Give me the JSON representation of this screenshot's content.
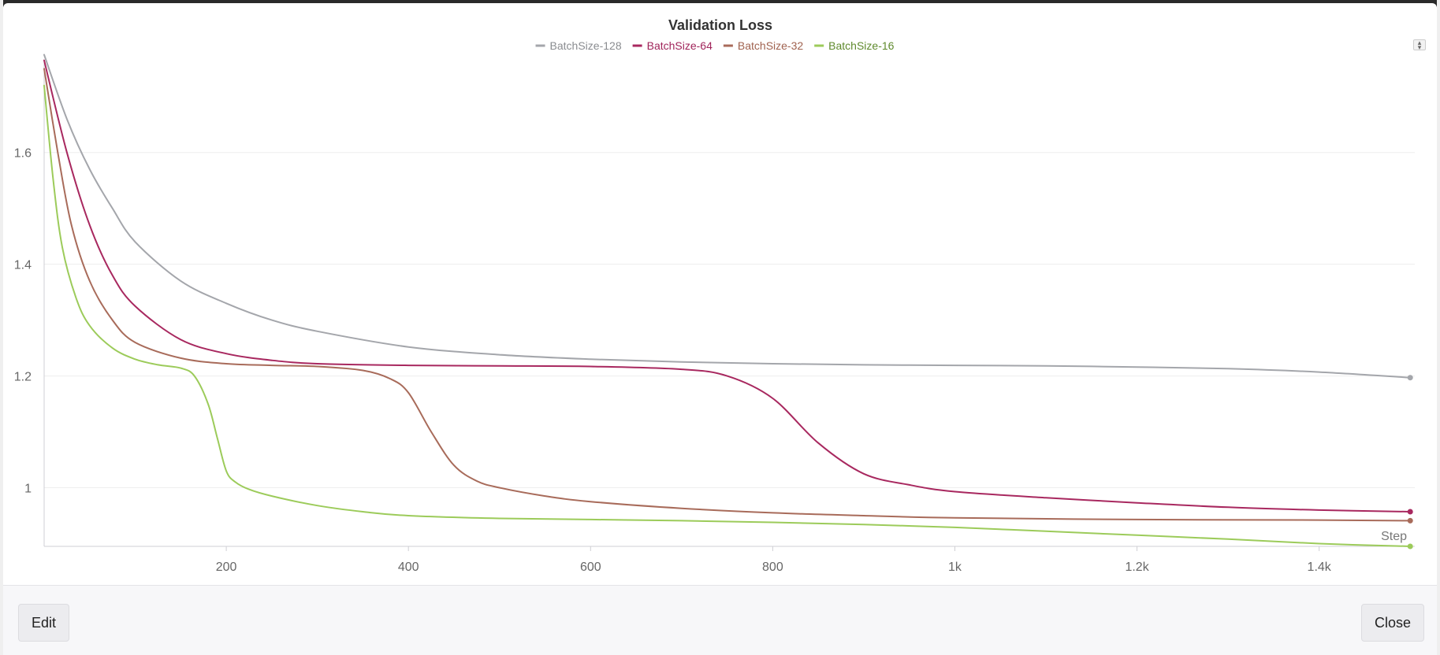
{
  "buttons": {
    "edit_label": "Edit",
    "close_label": "Close"
  },
  "colors": {
    "BatchSize-128": "#a4a6ab",
    "BatchSize-64": "#a8285f",
    "BatchSize-32": "#a86b5a",
    "BatchSize-16": "#9ccb5a"
  },
  "legend_text_colors": [
    "#8a8c90",
    "#a0245a",
    "#a0624f",
    "#5f8a2d"
  ],
  "chart_data": {
    "type": "line",
    "title": "Validation Loss",
    "xlabel": "Step",
    "ylabel": "",
    "xlim": [
      0,
      1505
    ],
    "ylim": [
      0.895,
      1.78
    ],
    "x_ticks": [
      {
        "value": 200,
        "label": "200"
      },
      {
        "value": 400,
        "label": "400"
      },
      {
        "value": 600,
        "label": "600"
      },
      {
        "value": 800,
        "label": "800"
      },
      {
        "value": 1000,
        "label": "1k"
      },
      {
        "value": 1200,
        "label": "1.2k"
      },
      {
        "value": 1400,
        "label": "1.4k"
      }
    ],
    "y_ticks": [
      {
        "value": 1.0,
        "label": "1"
      },
      {
        "value": 1.2,
        "label": "1.2"
      },
      {
        "value": 1.4,
        "label": "1.4"
      },
      {
        "value": 1.6,
        "label": "1.6"
      }
    ],
    "grid": true,
    "legend_position": "top-center",
    "series": [
      {
        "name": "BatchSize-128",
        "x": [
          0,
          25,
          50,
          75,
          100,
          150,
          200,
          250,
          300,
          400,
          500,
          600,
          700,
          800,
          900,
          1000,
          1100,
          1200,
          1300,
          1400,
          1500
        ],
        "y": [
          1.775,
          1.66,
          1.57,
          1.5,
          1.44,
          1.37,
          1.33,
          1.3,
          1.28,
          1.252,
          1.238,
          1.23,
          1.225,
          1.222,
          1.22,
          1.219,
          1.218,
          1.216,
          1.213,
          1.207,
          1.197
        ]
      },
      {
        "name": "BatchSize-64",
        "x": [
          0,
          25,
          50,
          75,
          100,
          150,
          200,
          250,
          300,
          400,
          500,
          600,
          700,
          750,
          800,
          850,
          900,
          950,
          1000,
          1100,
          1200,
          1300,
          1400,
          1500
        ],
        "y": [
          1.765,
          1.6,
          1.47,
          1.38,
          1.325,
          1.265,
          1.24,
          1.228,
          1.222,
          1.219,
          1.218,
          1.217,
          1.212,
          1.2,
          1.16,
          1.08,
          1.025,
          1.005,
          0.993,
          0.982,
          0.973,
          0.965,
          0.96,
          0.957
        ]
      },
      {
        "name": "BatchSize-32",
        "x": [
          0,
          15,
          30,
          50,
          75,
          100,
          150,
          200,
          250,
          300,
          350,
          380,
          400,
          425,
          450,
          475,
          500,
          550,
          600,
          700,
          800,
          900,
          1000,
          1200,
          1400,
          1500
        ],
        "y": [
          1.75,
          1.6,
          1.47,
          1.37,
          1.3,
          1.26,
          1.232,
          1.222,
          1.219,
          1.217,
          1.21,
          1.195,
          1.17,
          1.1,
          1.04,
          1.012,
          1.0,
          0.985,
          0.975,
          0.963,
          0.955,
          0.95,
          0.946,
          0.943,
          0.942,
          0.941
        ]
      },
      {
        "name": "BatchSize-16",
        "x": [
          0,
          10,
          20,
          35,
          50,
          75,
          100,
          125,
          150,
          165,
          180,
          190,
          200,
          210,
          225,
          250,
          300,
          350,
          400,
          500,
          600,
          700,
          800,
          900,
          1000,
          1100,
          1200,
          1300,
          1400,
          1500
        ],
        "y": [
          1.72,
          1.55,
          1.43,
          1.34,
          1.29,
          1.25,
          1.23,
          1.22,
          1.214,
          1.2,
          1.15,
          1.09,
          1.03,
          1.01,
          0.997,
          0.985,
          0.968,
          0.957,
          0.95,
          0.945,
          0.943,
          0.941,
          0.938,
          0.934,
          0.929,
          0.922,
          0.915,
          0.908,
          0.9,
          0.895
        ]
      }
    ]
  }
}
